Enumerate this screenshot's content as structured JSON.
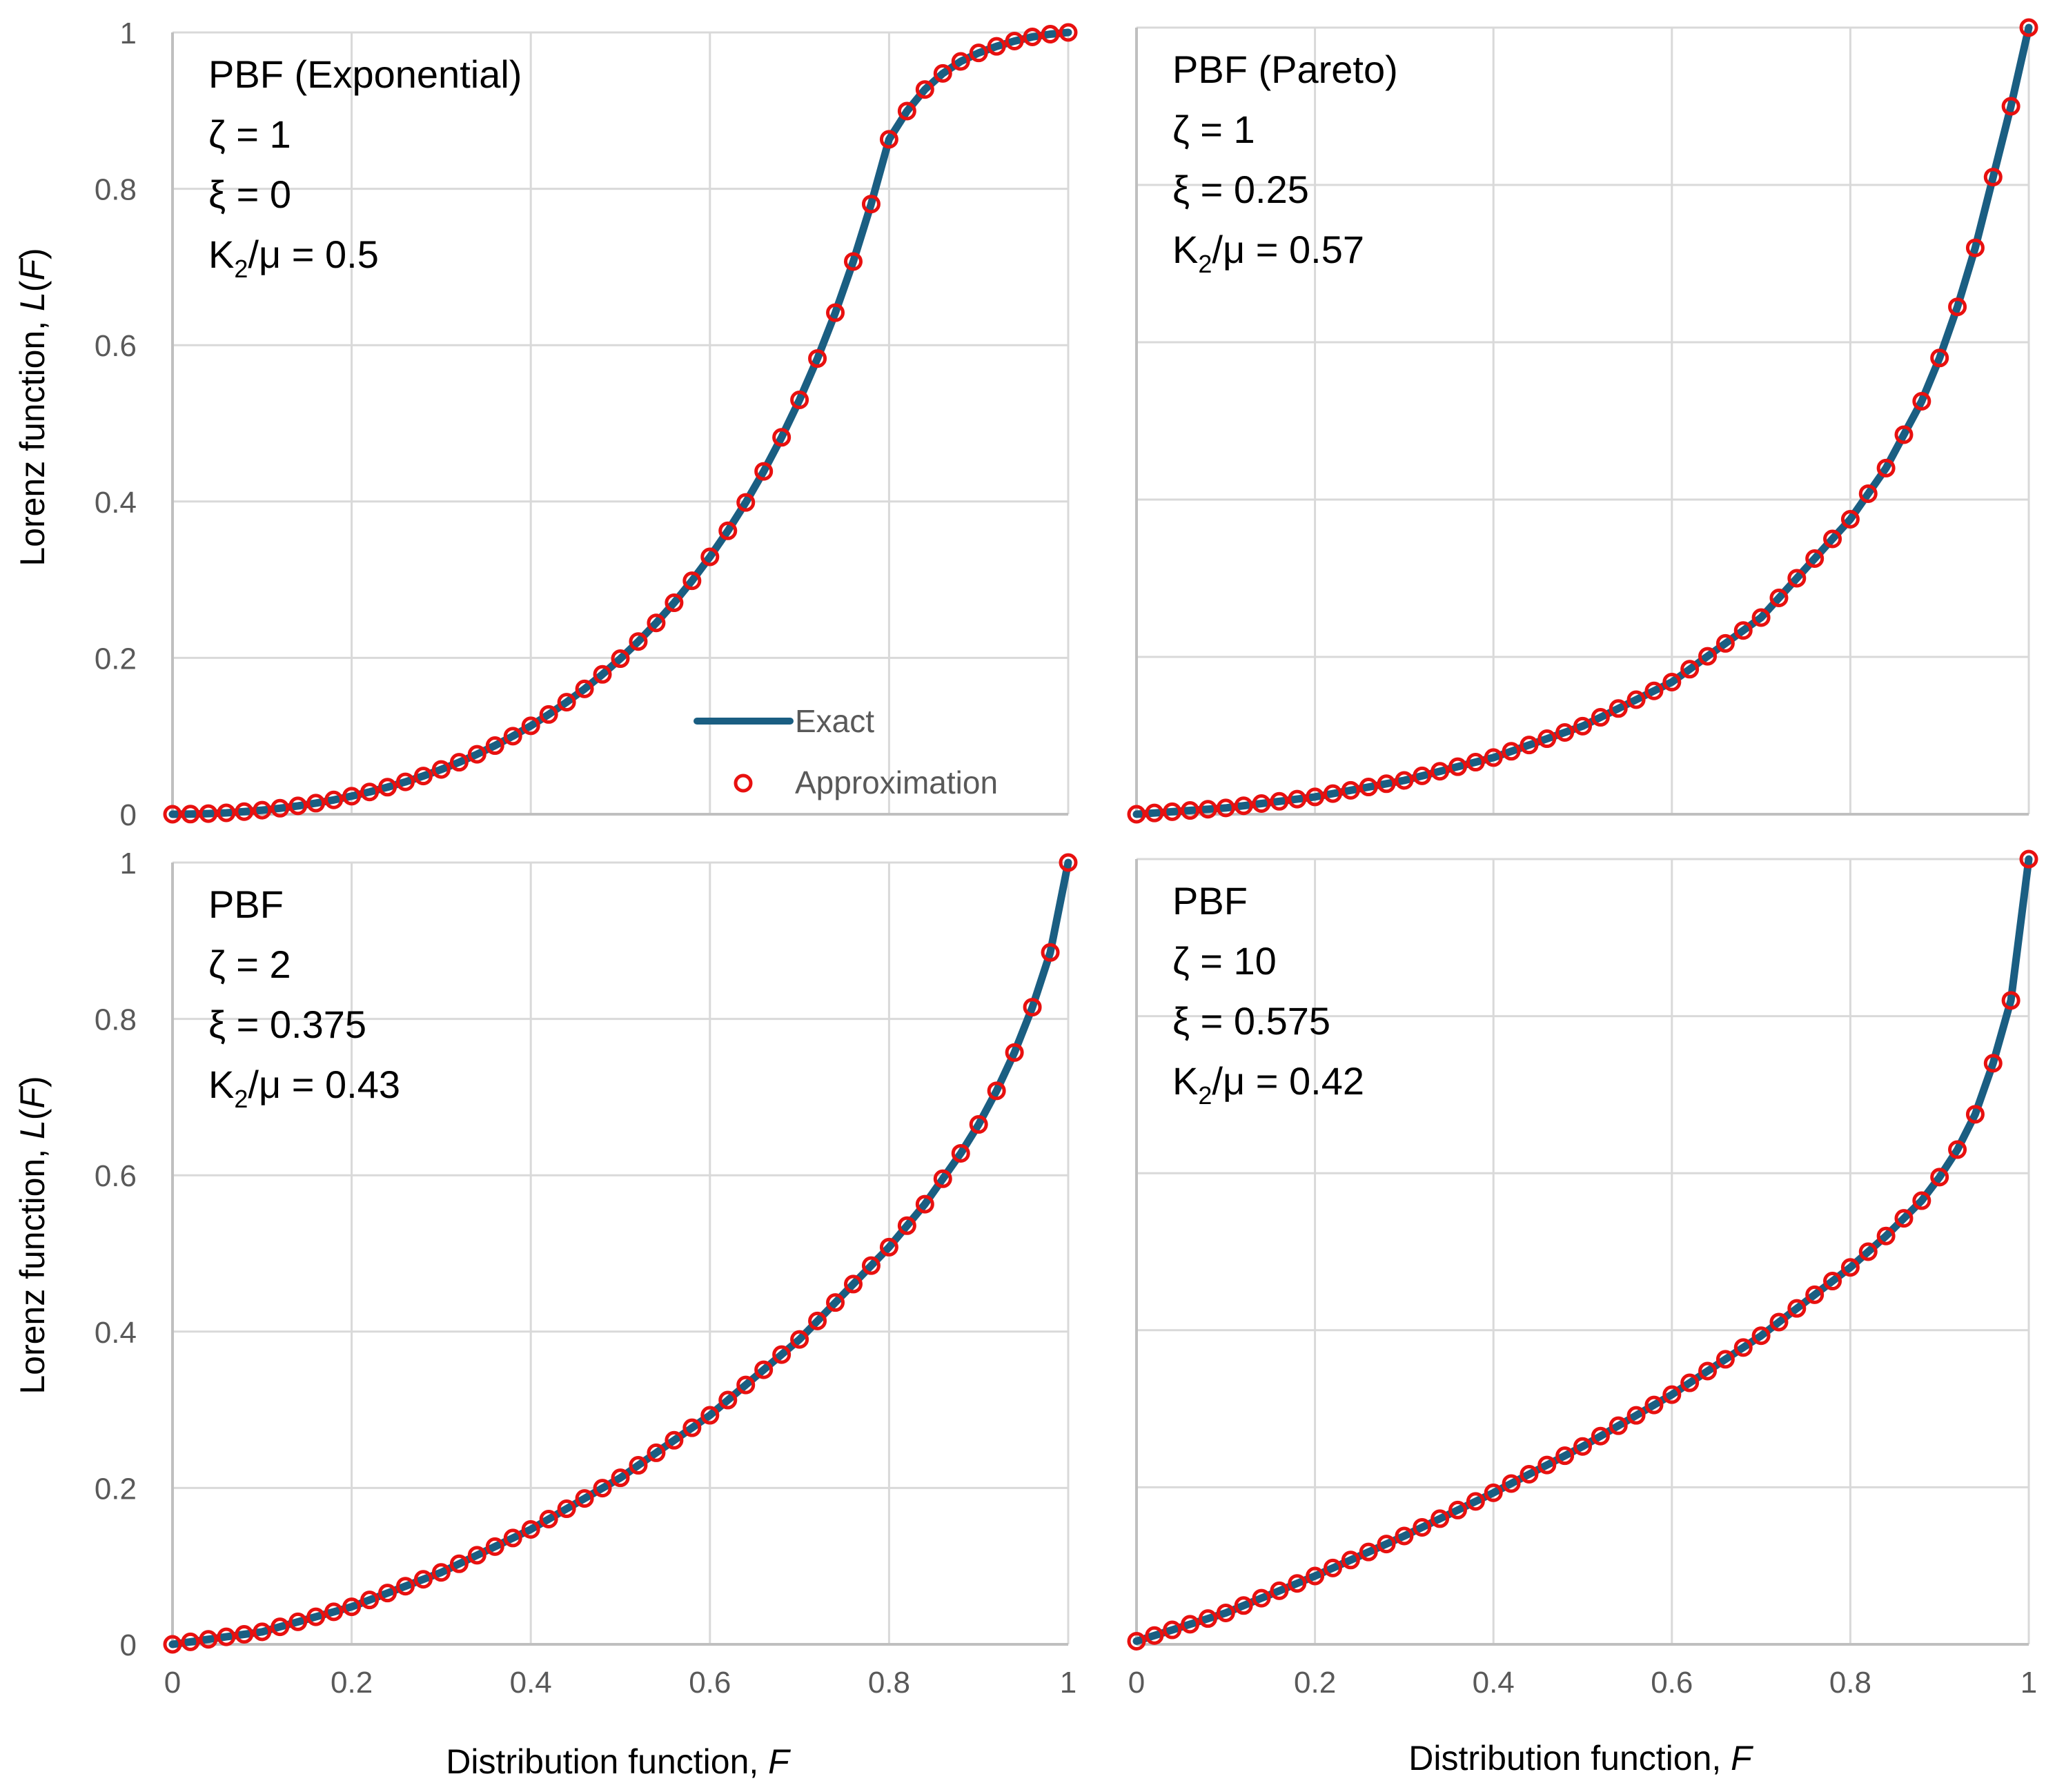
{
  "figure": {
    "ylabel_prefix": "Lorenz function, ",
    "ylabel_var": "L",
    "ylabel_open": "(",
    "ylabel_arg": "F",
    "ylabel_close": ")",
    "xlabel_prefix": "Distribution function, ",
    "xlabel_var": "F"
  },
  "legend": {
    "exact": "Exact",
    "approx": "Approximation"
  },
  "colors": {
    "exact": "#1a5e82",
    "approx": "#e8100f",
    "grid": "#d9d9d9",
    "axis": "#bfbfbf",
    "text": "#595959"
  },
  "chart_data": [
    {
      "type": "line",
      "panel": "top-left",
      "annotation": [
        "PBF (Exponential)",
        "ζ = 1",
        "ξ = 0"
      ],
      "k_label": {
        "pre": "K",
        "sub": "2",
        "post": "/μ = 0.5"
      },
      "zeta": 1,
      "xi": 0,
      "xlim": [
        0,
        1
      ],
      "ylim": [
        0,
        1
      ],
      "xticks": [
        "0",
        "0.2",
        "0.4",
        "0.6",
        "0.8",
        "1"
      ],
      "yticks": [
        "0",
        "0.2",
        "0.4",
        "0.6",
        "0.8",
        "1"
      ],
      "series": [
        {
          "name": "Exact",
          "kind": "line",
          "x": [
            0,
            0.02,
            0.04,
            0.06,
            0.08,
            0.1,
            0.12,
            0.14,
            0.16,
            0.18,
            0.2,
            0.22,
            0.24,
            0.26,
            0.28,
            0.3,
            0.32,
            0.34,
            0.36,
            0.38,
            0.4,
            0.42,
            0.44,
            0.46,
            0.48,
            0.5,
            0.52,
            0.54,
            0.56,
            0.58,
            0.6,
            0.62,
            0.64,
            0.66,
            0.68,
            0.7,
            0.72,
            0.74,
            0.76,
            0.78,
            0.8,
            0.82,
            0.84,
            0.86,
            0.88,
            0.9,
            0.92,
            0.94,
            0.96,
            0.98,
            1
          ],
          "y": [
            0,
            0.0002,
            0.0008,
            0.0018,
            0.0033,
            0.0052,
            0.0077,
            0.0107,
            0.0142,
            0.0183,
            0.0231,
            0.0285,
            0.0346,
            0.0414,
            0.0489,
            0.0573,
            0.0665,
            0.0767,
            0.0878,
            0.0999,
            0.1131,
            0.1276,
            0.1433,
            0.1603,
            0.1789,
            0.199,
            0.2209,
            0.2447,
            0.2705,
            0.2986,
            0.3292,
            0.3625,
            0.3988,
            0.4386,
            0.4821,
            0.53,
            0.5829,
            0.6415,
            0.707,
            0.7805,
            0.8633,
            0.8994,
            0.927,
            0.9476,
            0.9629,
            0.9738,
            0.9822,
            0.989,
            0.9943,
            0.9978,
            1
          ]
        },
        {
          "name": "Approximation",
          "kind": "markers",
          "x": [
            0,
            0.02,
            0.04,
            0.06,
            0.08,
            0.1,
            0.12,
            0.14,
            0.16,
            0.18,
            0.2,
            0.22,
            0.24,
            0.26,
            0.28,
            0.3,
            0.32,
            0.34,
            0.36,
            0.38,
            0.4,
            0.42,
            0.44,
            0.46,
            0.48,
            0.5,
            0.52,
            0.54,
            0.56,
            0.58,
            0.6,
            0.62,
            0.64,
            0.66,
            0.68,
            0.7,
            0.72,
            0.74,
            0.76,
            0.78,
            0.8,
            0.82,
            0.84,
            0.86,
            0.88,
            0.9,
            0.92,
            0.94,
            0.96,
            0.98,
            1
          ],
          "y": [
            0,
            0.0002,
            0.0008,
            0.0018,
            0.0033,
            0.0052,
            0.0077,
            0.0107,
            0.0142,
            0.0183,
            0.0231,
            0.0285,
            0.0346,
            0.0414,
            0.0489,
            0.0573,
            0.0665,
            0.0767,
            0.0878,
            0.0999,
            0.1131,
            0.1276,
            0.1433,
            0.1603,
            0.1789,
            0.199,
            0.2209,
            0.2447,
            0.2705,
            0.2986,
            0.3292,
            0.3625,
            0.3988,
            0.4386,
            0.4821,
            0.53,
            0.5829,
            0.6415,
            0.707,
            0.7805,
            0.8633,
            0.8994,
            0.927,
            0.9476,
            0.9629,
            0.9738,
            0.9822,
            0.989,
            0.9943,
            0.9978,
            1
          ]
        }
      ]
    },
    {
      "type": "line",
      "panel": "top-right",
      "annotation": [
        "PBF (Pareto)",
        "ζ = 1",
        "ξ = 0.25"
      ],
      "k_label": {
        "pre": "K",
        "sub": "2",
        "post": "/μ = 0.57"
      },
      "zeta": 1,
      "xi": 0.25,
      "xlim": [
        0,
        1
      ],
      "ylim": [
        0,
        1
      ],
      "series": []
    },
    {
      "type": "line",
      "panel": "bottom-left",
      "annotation": [
        "PBF",
        "ζ = 2",
        "ξ = 0.375"
      ],
      "k_label": {
        "pre": "K",
        "sub": "2",
        "post": "/μ = 0.43"
      },
      "zeta": 2,
      "xi": 0.375,
      "xlim": [
        0,
        1
      ],
      "ylim": [
        0,
        1
      ],
      "xticks": [
        "0",
        "0.2",
        "0.4",
        "0.6",
        "0.8",
        "1"
      ],
      "yticks": [
        "0",
        "0.2",
        "0.4",
        "0.6",
        "0.8",
        "1"
      ],
      "series": []
    },
    {
      "type": "line",
      "panel": "bottom-right",
      "annotation": [
        "PBF",
        "ζ = 10",
        "ξ = 0.575"
      ],
      "k_label": {
        "pre": "K",
        "sub": "2",
        "post": "/μ = 0.42"
      },
      "zeta": 10,
      "xi": 0.575,
      "xlim": [
        0,
        1
      ],
      "ylim": [
        0,
        1
      ],
      "xticks": [
        "0",
        "0.2",
        "0.4",
        "0.6",
        "0.8",
        "1"
      ],
      "series": []
    }
  ]
}
